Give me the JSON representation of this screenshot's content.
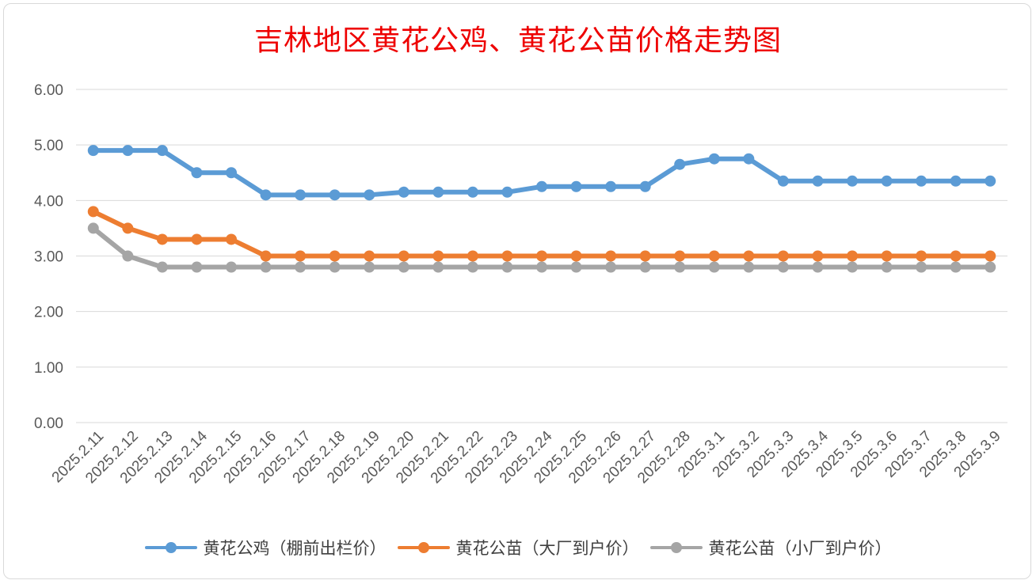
{
  "chart_data": {
    "type": "line",
    "title": "吉林地区黄花公鸡、黄花公苗价格走势图",
    "xlabel": "",
    "ylabel": "",
    "ylim": [
      0,
      6
    ],
    "y_ticks": [
      "0.00",
      "1.00",
      "2.00",
      "3.00",
      "4.00",
      "5.00",
      "6.00"
    ],
    "grid": true,
    "legend_position": "bottom",
    "categories": [
      "2025.2.11",
      "2025.2.12",
      "2025.2.13",
      "2025.2.14",
      "2025.2.15",
      "2025.2.16",
      "2025.2.17",
      "2025.2.18",
      "2025.2.19",
      "2025.2.20",
      "2025.2.21",
      "2025.2.22",
      "2025.2.23",
      "2025.2.24",
      "2025.2.25",
      "2025.2.26",
      "2025.2.27",
      "2025.2.28",
      "2025.3.1",
      "2025.3.2",
      "2025.3.3",
      "2025.3.4",
      "2025.3.5",
      "2025.3.6",
      "2025.3.7",
      "2025.3.8",
      "2025.3.9"
    ],
    "series": [
      {
        "name": "黄花公鸡（棚前出栏价）",
        "color": "#5b9bd5",
        "values": [
          4.9,
          4.9,
          4.9,
          4.5,
          4.5,
          4.1,
          4.1,
          4.1,
          4.1,
          4.15,
          4.15,
          4.15,
          4.15,
          4.25,
          4.25,
          4.25,
          4.25,
          4.65,
          4.75,
          4.75,
          4.35,
          4.35,
          4.35,
          4.35,
          4.35,
          4.35,
          4.35
        ]
      },
      {
        "name": "黄花公苗（大厂到户价）",
        "color": "#ed7d31",
        "values": [
          3.8,
          3.5,
          3.3,
          3.3,
          3.3,
          3.0,
          3.0,
          3.0,
          3.0,
          3.0,
          3.0,
          3.0,
          3.0,
          3.0,
          3.0,
          3.0,
          3.0,
          3.0,
          3.0,
          3.0,
          3.0,
          3.0,
          3.0,
          3.0,
          3.0,
          3.0,
          3.0
        ]
      },
      {
        "name": "黄花公苗（小厂到户价）",
        "color": "#a5a5a5",
        "values": [
          3.5,
          3.0,
          2.8,
          2.8,
          2.8,
          2.8,
          2.8,
          2.8,
          2.8,
          2.8,
          2.8,
          2.8,
          2.8,
          2.8,
          2.8,
          2.8,
          2.8,
          2.8,
          2.8,
          2.8,
          2.8,
          2.8,
          2.8,
          2.8,
          2.8,
          2.8,
          2.8
        ]
      }
    ]
  }
}
